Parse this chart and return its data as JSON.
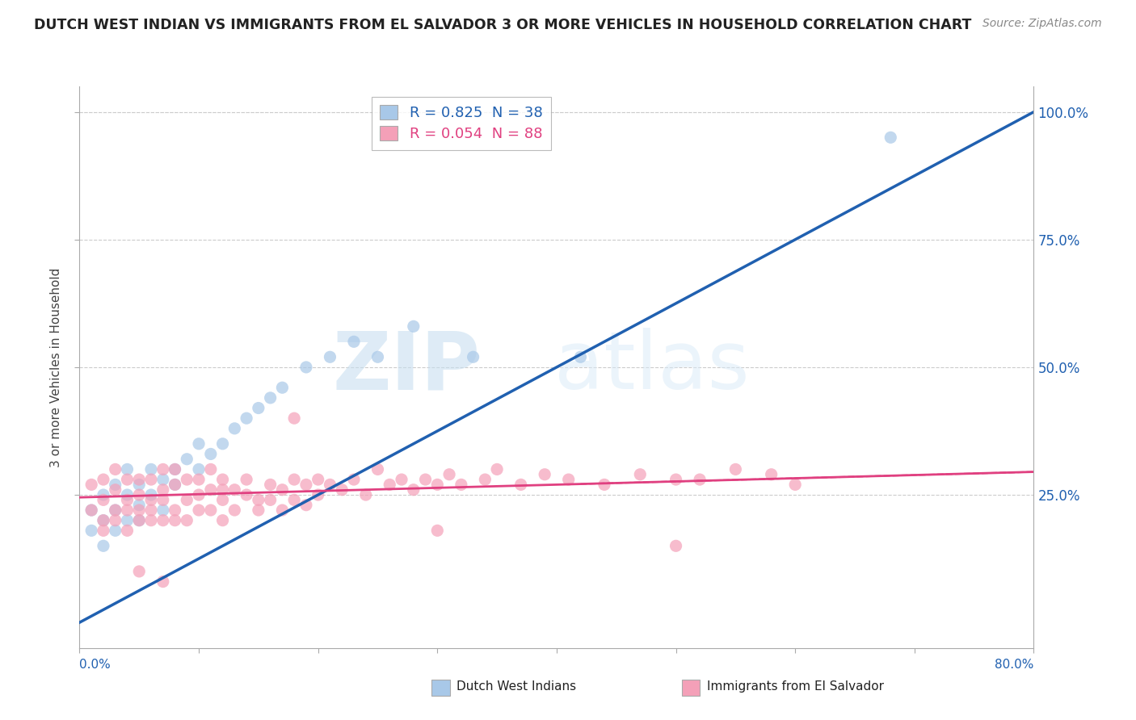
{
  "title": "DUTCH WEST INDIAN VS IMMIGRANTS FROM EL SALVADOR 3 OR MORE VEHICLES IN HOUSEHOLD CORRELATION CHART",
  "source": "Source: ZipAtlas.com",
  "ylabel": "3 or more Vehicles in Household",
  "legend1_label": "R = 0.825  N = 38",
  "legend2_label": "R = 0.054  N = 88",
  "blue_color": "#a8c8e8",
  "pink_color": "#f4a0b8",
  "blue_line_color": "#2060b0",
  "pink_line_color": "#e04080",
  "watermark_zip": "ZIP",
  "watermark_atlas": "atlas",
  "xmin": 0.0,
  "xmax": 0.8,
  "ymin": -0.05,
  "ymax": 1.05,
  "blue_line_x0": 0.0,
  "blue_line_y0": 0.0,
  "blue_line_x1": 0.8,
  "blue_line_y1": 1.0,
  "pink_line_x0": 0.0,
  "pink_line_y0": 0.245,
  "pink_line_x1": 0.8,
  "pink_line_y1": 0.295,
  "blue_scatter_x": [
    0.01,
    0.01,
    0.02,
    0.02,
    0.02,
    0.03,
    0.03,
    0.03,
    0.04,
    0.04,
    0.04,
    0.05,
    0.05,
    0.05,
    0.06,
    0.06,
    0.07,
    0.07,
    0.08,
    0.08,
    0.09,
    0.1,
    0.1,
    0.11,
    0.12,
    0.13,
    0.14,
    0.15,
    0.16,
    0.17,
    0.19,
    0.21,
    0.23,
    0.25,
    0.28,
    0.33,
    0.42,
    0.68
  ],
  "blue_scatter_y": [
    0.18,
    0.22,
    0.2,
    0.25,
    0.15,
    0.22,
    0.27,
    0.18,
    0.25,
    0.2,
    0.3,
    0.23,
    0.27,
    0.2,
    0.25,
    0.3,
    0.28,
    0.22,
    0.3,
    0.27,
    0.32,
    0.3,
    0.35,
    0.33,
    0.35,
    0.38,
    0.4,
    0.42,
    0.44,
    0.46,
    0.5,
    0.52,
    0.55,
    0.52,
    0.58,
    0.52,
    0.52,
    0.95
  ],
  "pink_scatter_x": [
    0.01,
    0.01,
    0.02,
    0.02,
    0.02,
    0.02,
    0.03,
    0.03,
    0.03,
    0.03,
    0.04,
    0.04,
    0.04,
    0.04,
    0.05,
    0.05,
    0.05,
    0.05,
    0.06,
    0.06,
    0.06,
    0.06,
    0.07,
    0.07,
    0.07,
    0.07,
    0.08,
    0.08,
    0.08,
    0.08,
    0.09,
    0.09,
    0.09,
    0.1,
    0.1,
    0.1,
    0.11,
    0.11,
    0.11,
    0.12,
    0.12,
    0.12,
    0.13,
    0.13,
    0.14,
    0.14,
    0.15,
    0.15,
    0.16,
    0.16,
    0.17,
    0.17,
    0.18,
    0.18,
    0.19,
    0.19,
    0.2,
    0.2,
    0.21,
    0.22,
    0.23,
    0.24,
    0.25,
    0.26,
    0.27,
    0.28,
    0.29,
    0.3,
    0.31,
    0.32,
    0.34,
    0.35,
    0.37,
    0.39,
    0.41,
    0.44,
    0.47,
    0.5,
    0.52,
    0.55,
    0.58,
    0.6,
    0.5,
    0.3,
    0.18,
    0.12,
    0.07,
    0.05
  ],
  "pink_scatter_y": [
    0.22,
    0.27,
    0.18,
    0.24,
    0.28,
    0.2,
    0.22,
    0.26,
    0.2,
    0.3,
    0.24,
    0.18,
    0.28,
    0.22,
    0.25,
    0.2,
    0.28,
    0.22,
    0.24,
    0.2,
    0.28,
    0.22,
    0.26,
    0.2,
    0.3,
    0.24,
    0.22,
    0.27,
    0.2,
    0.3,
    0.24,
    0.2,
    0.28,
    0.25,
    0.22,
    0.28,
    0.26,
    0.22,
    0.3,
    0.24,
    0.2,
    0.28,
    0.26,
    0.22,
    0.25,
    0.28,
    0.24,
    0.22,
    0.27,
    0.24,
    0.26,
    0.22,
    0.28,
    0.24,
    0.27,
    0.23,
    0.28,
    0.25,
    0.27,
    0.26,
    0.28,
    0.25,
    0.3,
    0.27,
    0.28,
    0.26,
    0.28,
    0.27,
    0.29,
    0.27,
    0.28,
    0.3,
    0.27,
    0.29,
    0.28,
    0.27,
    0.29,
    0.28,
    0.28,
    0.3,
    0.29,
    0.27,
    0.15,
    0.18,
    0.4,
    0.26,
    0.08,
    0.1
  ]
}
